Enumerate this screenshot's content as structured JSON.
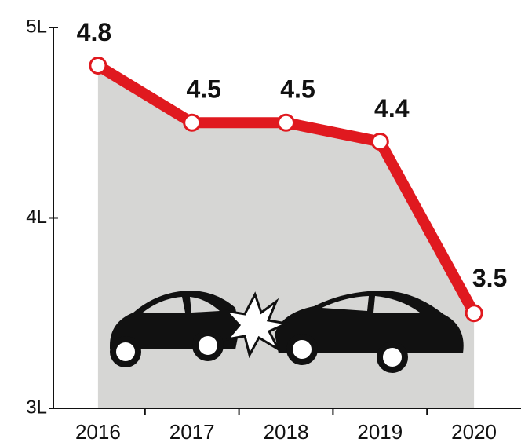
{
  "chart_data": {
    "type": "line",
    "categories": [
      "2016",
      "2017",
      "2018",
      "2019",
      "2020"
    ],
    "values": [
      4.8,
      4.5,
      4.5,
      4.4,
      3.5
    ],
    "color": "#e0191f",
    "area_color": "#d6d6d4",
    "ylim": [
      3,
      5
    ],
    "yticks": [
      {
        "value": 3,
        "label": "3L"
      },
      {
        "value": 4,
        "label": "4L"
      },
      {
        "value": 5,
        "label": "5L"
      }
    ],
    "grid": false
  }
}
